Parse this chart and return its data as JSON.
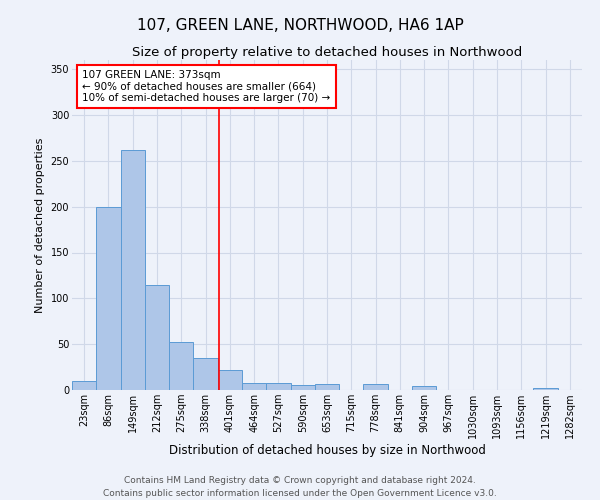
{
  "title": "107, GREEN LANE, NORTHWOOD, HA6 1AP",
  "subtitle": "Size of property relative to detached houses in Northwood",
  "xlabel": "Distribution of detached houses by size in Northwood",
  "ylabel": "Number of detached properties",
  "bin_labels": [
    "23sqm",
    "86sqm",
    "149sqm",
    "212sqm",
    "275sqm",
    "338sqm",
    "401sqm",
    "464sqm",
    "527sqm",
    "590sqm",
    "653sqm",
    "715sqm",
    "778sqm",
    "841sqm",
    "904sqm",
    "967sqm",
    "1030sqm",
    "1093sqm",
    "1156sqm",
    "1219sqm",
    "1282sqm"
  ],
  "bar_values": [
    10,
    200,
    262,
    115,
    52,
    35,
    22,
    8,
    8,
    5,
    7,
    0,
    7,
    0,
    4,
    0,
    0,
    0,
    0,
    2,
    0
  ],
  "bar_color": "#aec6e8",
  "bar_edge_color": "#5b9bd5",
  "grid_color": "#d0d8e8",
  "background_color": "#eef2fa",
  "red_line_x": 5.55,
  "annotation_text": "107 GREEN LANE: 373sqm\n← 90% of detached houses are smaller (664)\n10% of semi-detached houses are larger (70) →",
  "annotation_box_color": "white",
  "annotation_box_edge": "red",
  "footer": "Contains HM Land Registry data © Crown copyright and database right 2024.\nContains public sector information licensed under the Open Government Licence v3.0.",
  "ylim": [
    0,
    360
  ],
  "title_fontsize": 11,
  "subtitle_fontsize": 9.5,
  "xlabel_fontsize": 8.5,
  "ylabel_fontsize": 8,
  "tick_fontsize": 7,
  "footer_fontsize": 6.5,
  "annot_fontsize": 7.5
}
